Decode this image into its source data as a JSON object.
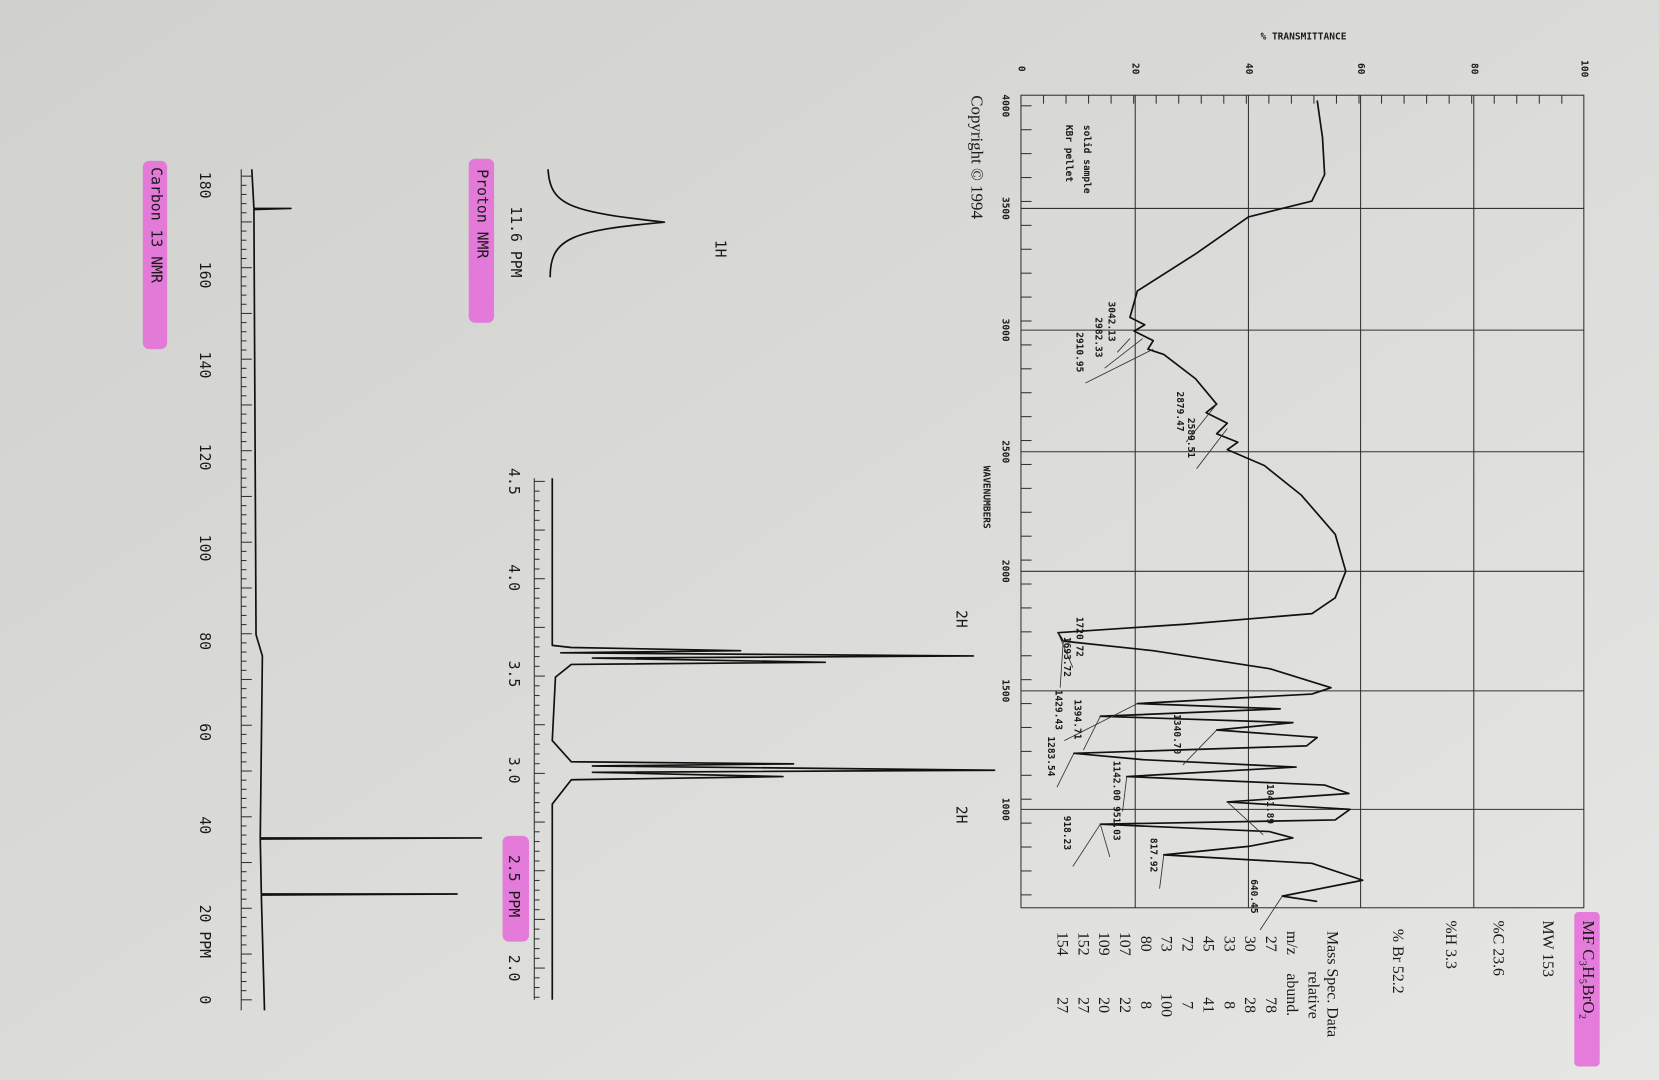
{
  "compound": {
    "formula": "MF C₃H₅BrO₂",
    "mw": "MW 153",
    "carbon": "%C 23.6",
    "hydrogen": "%H 3.3",
    "bromine": "% Br 52.2"
  },
  "mass_spec": {
    "title": "Mass Spec. Data",
    "subtitle": "relative",
    "headers": [
      "m/z",
      "abund."
    ],
    "rows": [
      [
        "27",
        "78"
      ],
      [
        "30",
        "28"
      ],
      [
        "33",
        "8"
      ],
      [
        "45",
        "41"
      ],
      [
        "72",
        "7"
      ],
      [
        "73",
        "100"
      ],
      [
        "80",
        "8"
      ],
      [
        "107",
        "22"
      ],
      [
        "109",
        "20"
      ],
      [
        "152",
        "27"
      ],
      [
        "154",
        "27"
      ]
    ]
  },
  "ir": {
    "y_label": "% TRANSMITTANCE",
    "x_label": "WAVENUMBERS",
    "y_ticks": [
      "0",
      "20",
      "40",
      "60",
      "80",
      "100"
    ],
    "x_ticks": [
      "4000",
      "3500",
      "3000",
      "2500",
      "2000",
      "1500",
      "1000"
    ],
    "sample": [
      "solid sample",
      "KBr pellet"
    ],
    "peaks": [
      "3042.13",
      "2982.33",
      "2910.95",
      "2879.47",
      "2589.51",
      "1720.72",
      "1693.72",
      "1429.43",
      "1394.71",
      "1340.70",
      "1283.54",
      "1142.00",
      "1041.89",
      "951.03",
      "918.23",
      "817.92",
      "640.45"
    ],
    "copyright": "Copyright © 1994"
  },
  "proton_nmr": {
    "title": "Proton NMR",
    "inset_label": "1H",
    "inset_shift": "11.6 PPM",
    "integrals": [
      "2H",
      "2H"
    ],
    "ticks": [
      "4.5",
      "4.0",
      "3.5",
      "3.0",
      "2.5 PPM",
      "2.0"
    ]
  },
  "carbon_nmr": {
    "title": "Carbon 13 NMR",
    "ticks": [
      "180",
      "160",
      "140",
      "120",
      "100",
      "80",
      "60",
      "40",
      "20 PPM",
      "0"
    ]
  }
}
